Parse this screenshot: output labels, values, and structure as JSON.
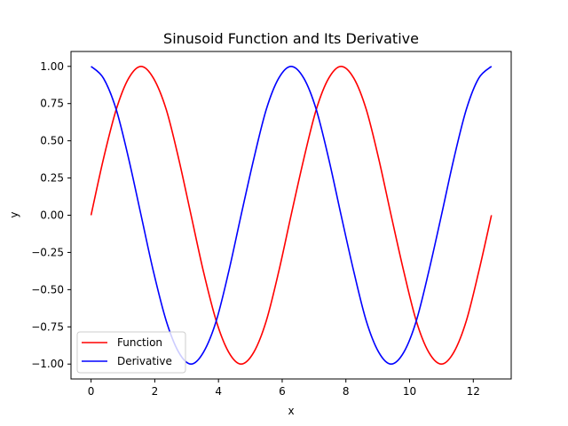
{
  "chart_data": {
    "type": "line",
    "title": "Sinusoid Function and Its Derivative",
    "xlabel": "x",
    "ylabel": "y",
    "xlim": [
      -0.63,
      13.19
    ],
    "ylim": [
      -1.1,
      1.1
    ],
    "xticks": [
      0,
      2,
      4,
      6,
      8,
      10,
      12
    ],
    "xtick_labels": [
      "0",
      "2",
      "4",
      "6",
      "8",
      "10",
      "12"
    ],
    "yticks": [
      1.0,
      0.75,
      0.5,
      0.25,
      0.0,
      -0.25,
      -0.5,
      -0.75,
      -1.0
    ],
    "ytick_labels": [
      "1.00",
      "0.75",
      "0.50",
      "0.25",
      "0.00",
      "−0.25",
      "−0.50",
      "−0.75",
      "−1.00"
    ],
    "grid": false,
    "legend_position": "lower-left",
    "x": [
      0,
      0.39,
      0.79,
      1.18,
      1.57,
      1.96,
      2.36,
      2.75,
      3.14,
      3.53,
      3.93,
      4.32,
      4.71,
      5.11,
      5.5,
      5.89,
      6.28,
      6.68,
      7.07,
      7.46,
      7.85,
      8.25,
      8.64,
      9.03,
      9.42,
      9.82,
      10.21,
      10.6,
      11.0,
      11.39,
      11.78,
      12.17,
      12.57
    ],
    "series": [
      {
        "name": "Function",
        "color": "#ff0000",
        "values": [
          0,
          0.38,
          0.71,
          0.92,
          1.0,
          0.92,
          0.71,
          0.38,
          0,
          -0.38,
          -0.71,
          -0.92,
          -1.0,
          -0.92,
          -0.71,
          -0.38,
          0,
          0.38,
          0.71,
          0.92,
          1.0,
          0.92,
          0.71,
          0.38,
          0,
          -0.38,
          -0.71,
          -0.92,
          -1.0,
          -0.92,
          -0.71,
          -0.38,
          0
        ]
      },
      {
        "name": "Derivative",
        "color": "#0000ff",
        "values": [
          1.0,
          0.92,
          0.71,
          0.38,
          0,
          -0.38,
          -0.71,
          -0.92,
          -1.0,
          -0.92,
          -0.71,
          -0.38,
          0,
          0.38,
          0.71,
          0.92,
          1.0,
          0.92,
          0.71,
          0.38,
          0,
          -0.38,
          -0.71,
          -0.92,
          -1.0,
          -0.92,
          -0.71,
          -0.38,
          0,
          0.38,
          0.71,
          0.92,
          1.0
        ]
      }
    ]
  }
}
